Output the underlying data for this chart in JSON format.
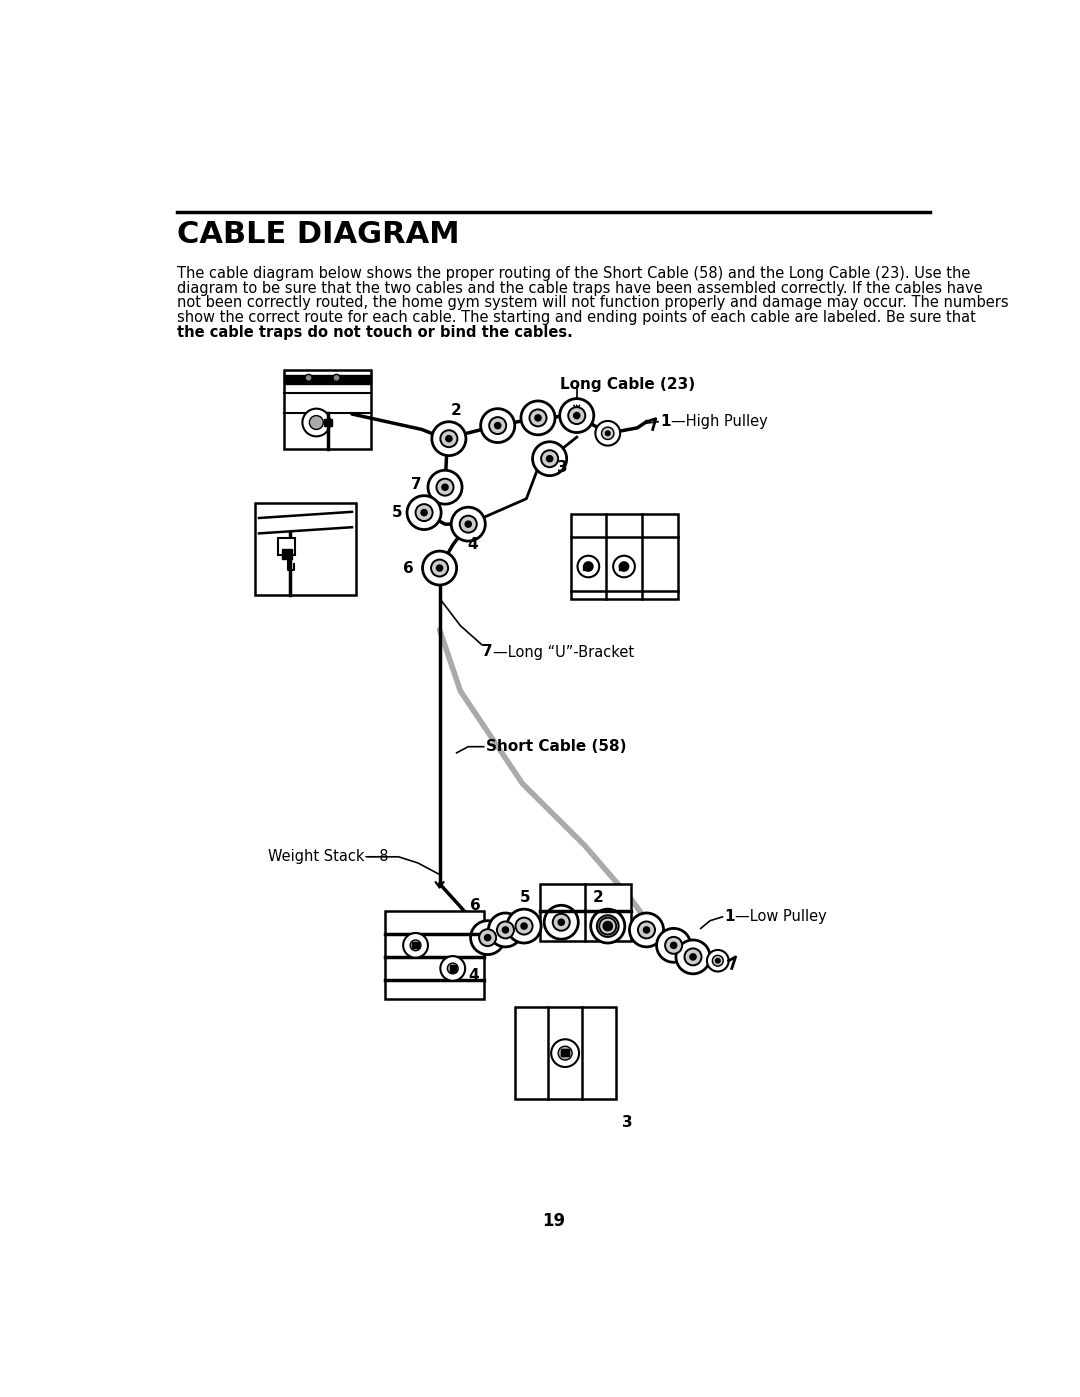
{
  "title": "CABLE DIAGRAM",
  "body_lines": [
    "The cable diagram below shows the proper routing of the Short Cable (58) and the Long Cable (23). Use the",
    "diagram to be sure that the two cables and the cable traps have been assembled correctly. If the cables have",
    "not been correctly routed, the home gym system will not function properly and damage may occur. The numbers",
    "show the correct route for each cable. The starting and ending points of each cable are labeled. Be sure that"
  ],
  "bold_line": "the cable traps do not touch or bind the cables.",
  "page_number": "19",
  "bg_color": "#ffffff",
  "text_color": "#000000",
  "title_fontsize": 22,
  "body_fontsize": 10.5,
  "line_color": "#000000",
  "gray_color": "#999999",
  "label_long_cable": "Long Cable (23)",
  "label_short_cable": "Short Cable (58)",
  "label_high_pulley": "1—High Pulley",
  "label_low_pulley": "1—Low Pulley",
  "label_u_bracket": "7—Long “U”-Bracket",
  "label_weight_stack": "Weight Stack—8"
}
